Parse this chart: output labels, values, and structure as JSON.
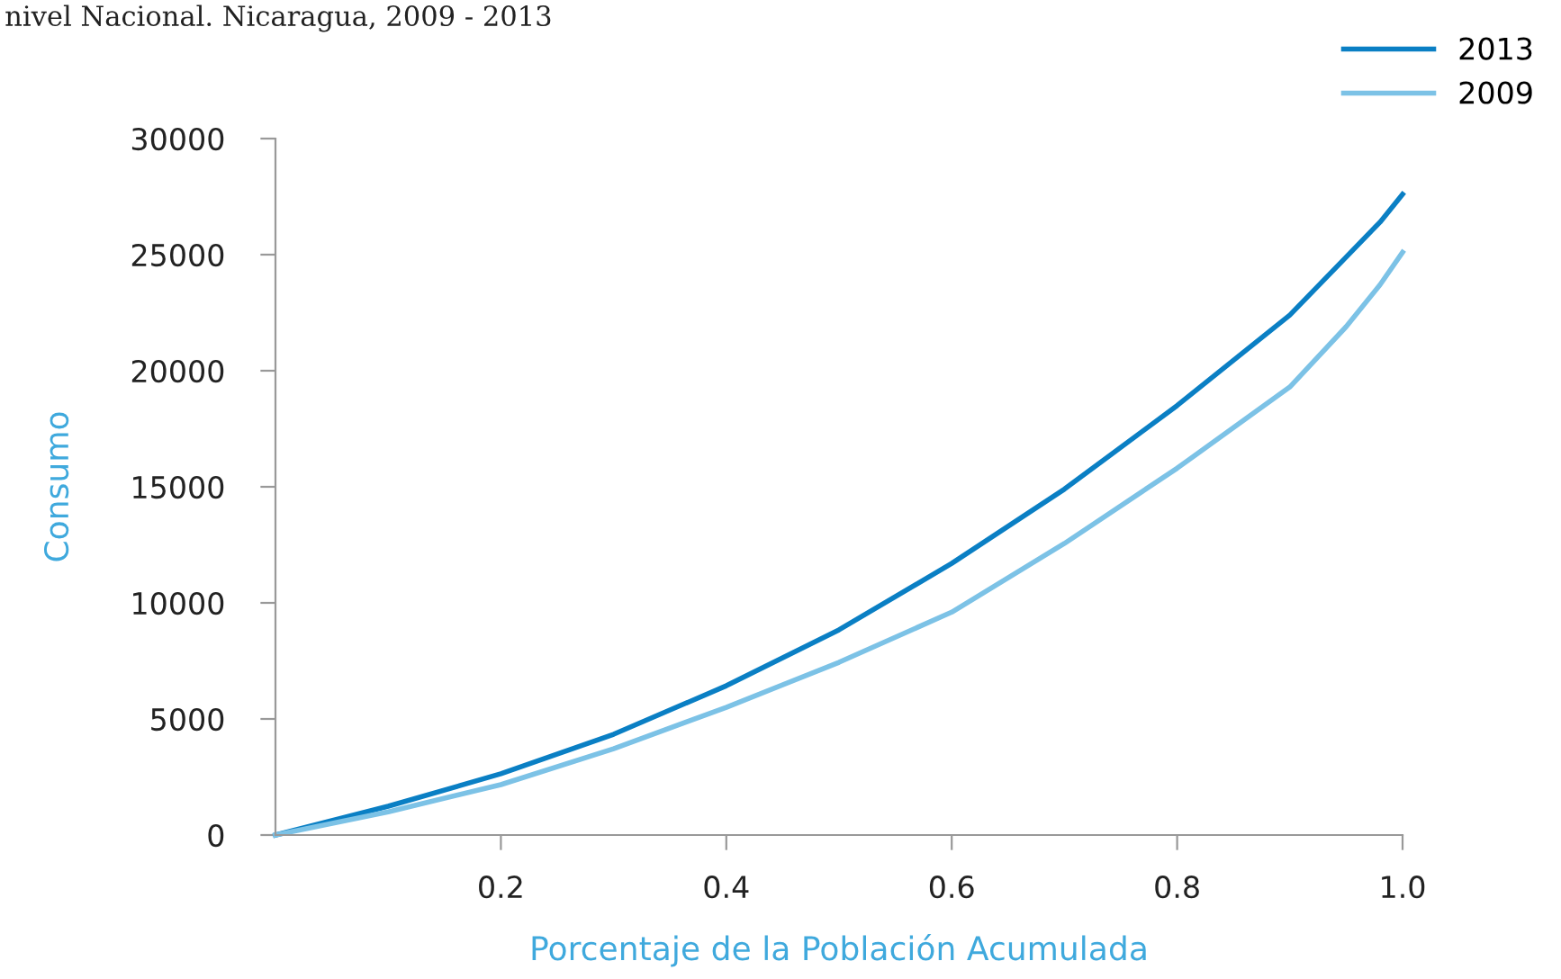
{
  "chart_data": {
    "type": "line",
    "title": "nivel Nacional. Nicaragua, 2009 - 2013",
    "xlabel": "Porcentaje de la Población Acumulada",
    "ylabel": "Consumo",
    "x": [
      0,
      0.1,
      0.2,
      0.3,
      0.4,
      0.5,
      0.6,
      0.7,
      0.8,
      0.9,
      0.95,
      0.98,
      1.0
    ],
    "series": [
      {
        "name": "2013",
        "color": "#0a7fc4",
        "values": [
          0,
          1240,
          2640,
          4340,
          6430,
          8840,
          11700,
          14900,
          18500,
          22400,
          24900,
          26400,
          27600
        ]
      },
      {
        "name": "2009",
        "color": "#7cc2e6",
        "values": [
          0,
          1000,
          2170,
          3720,
          5500,
          7440,
          9600,
          12560,
          15800,
          19300,
          21900,
          23700,
          25100
        ]
      }
    ],
    "xlim": [
      0,
      1.0
    ],
    "ylim": [
      0,
      30000
    ],
    "xticks": [
      0.2,
      0.4,
      0.6,
      0.8,
      {
        "value": 1.0,
        "label": "1.0"
      }
    ],
    "yticks": [
      0,
      5000,
      10000,
      15000,
      20000,
      25000,
      30000
    ],
    "grid": false,
    "legend": "top right",
    "marker": "none",
    "line_style": "solid"
  }
}
